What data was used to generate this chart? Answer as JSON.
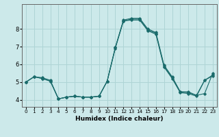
{
  "title": "",
  "xlabel": "Humidex (Indice chaleur)",
  "ylabel": "",
  "background_color": "#cce9ea",
  "grid_color": "#aed4d5",
  "line_color": "#1a6b6b",
  "xlim": [
    -0.5,
    23.5
  ],
  "ylim": [
    3.6,
    9.4
  ],
  "xticks": [
    0,
    1,
    2,
    3,
    4,
    5,
    6,
    7,
    8,
    9,
    10,
    11,
    12,
    13,
    14,
    15,
    16,
    17,
    18,
    19,
    20,
    21,
    22,
    23
  ],
  "yticks": [
    4,
    5,
    6,
    7,
    8
  ],
  "series": [
    [
      5.0,
      5.3,
      5.25,
      5.1,
      4.05,
      4.15,
      4.2,
      4.15,
      4.15,
      4.2,
      5.05,
      6.95,
      8.5,
      8.6,
      8.6,
      8.0,
      7.8,
      5.95,
      5.3,
      4.45,
      4.45,
      4.25,
      4.35,
      5.5
    ],
    [
      5.0,
      5.3,
      5.2,
      5.05,
      4.05,
      4.15,
      4.2,
      4.15,
      4.15,
      4.2,
      5.05,
      6.95,
      8.45,
      8.55,
      8.55,
      7.95,
      7.75,
      5.9,
      5.25,
      4.45,
      4.4,
      4.25,
      5.1,
      5.4
    ],
    [
      5.0,
      5.3,
      5.2,
      5.05,
      4.05,
      4.15,
      4.2,
      4.15,
      4.15,
      4.2,
      5.05,
      6.9,
      8.45,
      8.5,
      8.5,
      7.9,
      7.7,
      5.85,
      5.2,
      4.4,
      4.35,
      4.2,
      5.1,
      5.35
    ]
  ],
  "xlabel_fontsize": 6.5,
  "tick_fontsize_x": 5.2,
  "tick_fontsize_y": 6.0
}
